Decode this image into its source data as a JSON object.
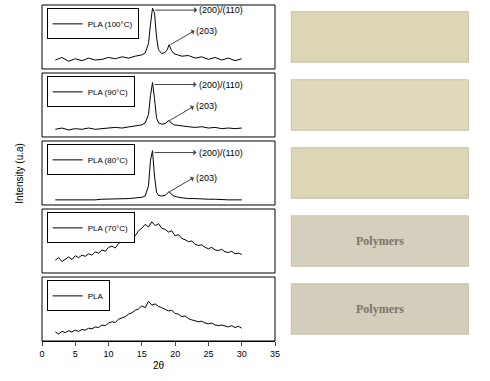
{
  "chart_data": {
    "type": "line",
    "xlabel": "2θ",
    "ylabel": "Intensity (u.a)",
    "xlim": [
      0,
      35
    ],
    "xticks": [
      0,
      5,
      10,
      15,
      20,
      25,
      30,
      35
    ],
    "tick_labels": "x",
    "sample_labels": [
      null,
      null,
      null,
      "Polymers",
      "Polymers"
    ],
    "panels": [
      {
        "ylim": [
          0,
          100
        ],
        "legend": "upper left",
        "series": [
          {
            "name": "PLA (100°C)",
            "color": "#000000",
            "x": [
              2,
              3,
              4,
              5,
              6,
              7,
              8,
              9,
              10,
              11,
              12,
              13,
              14,
              15,
              15.5,
              16,
              16.3,
              16.6,
              16.9,
              17.2,
              17.5,
              18,
              18.5,
              18.8,
              19.1,
              19.4,
              19.8,
              20.5,
              21,
              22,
              23,
              24,
              25,
              26,
              27,
              28,
              29,
              30
            ],
            "values": [
              14,
              18,
              12,
              16,
              13,
              17,
              14,
              15,
              18,
              16,
              19,
              17,
              20,
              22,
              25,
              40,
              70,
              95,
              88,
              50,
              30,
              24,
              26,
              30,
              38,
              30,
              24,
              22,
              20,
              21,
              17,
              19,
              15,
              18,
              14,
              17,
              13,
              16
            ]
          }
        ],
        "annotations": [
          {
            "text": "(200)/(110)",
            "x": 17.0,
            "y": 92
          },
          {
            "text": "(203)",
            "x": 19.3,
            "y": 38
          }
        ]
      },
      {
        "ylim": [
          0,
          100
        ],
        "legend": "upper left",
        "series": [
          {
            "name": "PLA (90°C)",
            "color": "#000000",
            "x": [
              2,
              3,
              4,
              5,
              6,
              7,
              8,
              9,
              10,
              11,
              12,
              13,
              14,
              15,
              15.5,
              16,
              16.3,
              16.6,
              16.9,
              17.2,
              17.5,
              18,
              18.5,
              18.8,
              19.1,
              19.4,
              19.8,
              20.5,
              21,
              22,
              23,
              24,
              25,
              26,
              27,
              28,
              29,
              30
            ],
            "values": [
              12,
              14,
              11,
              13,
              12,
              14,
              12,
              13,
              14,
              15,
              14,
              16,
              17,
              19,
              22,
              35,
              65,
              85,
              60,
              30,
              22,
              20,
              21,
              24,
              26,
              22,
              19,
              18,
              17,
              16,
              15,
              16,
              14,
              15,
              13,
              14,
              13,
              14
            ]
          }
        ],
        "annotations": [
          {
            "text": "(200)/(110)",
            "x": 16.9,
            "y": 82
          },
          {
            "text": "(203)",
            "x": 19.2,
            "y": 26
          }
        ]
      },
      {
        "ylim": [
          0,
          100
        ],
        "legend": "upper left",
        "series": [
          {
            "name": "PLA (80°C)",
            "color": "#000000",
            "x": [
              2,
              3,
              4,
              5,
              6,
              7,
              8,
              9,
              10,
              11,
              12,
              13,
              14,
              15,
              15.5,
              16,
              16.3,
              16.6,
              16.9,
              17.2,
              17.5,
              18,
              18.5,
              18.8,
              19.1,
              19.4,
              19.8,
              20.5,
              21,
              22,
              23,
              24,
              25,
              26,
              27,
              28,
              29,
              30
            ],
            "values": [
              8,
              8,
              7,
              8,
              8,
              8,
              8,
              9,
              9,
              9,
              10,
              10,
              11,
              12,
              14,
              30,
              70,
              85,
              45,
              20,
              15,
              14,
              15,
              18,
              21,
              17,
              14,
              12,
              11,
              10,
              10,
              9,
              9,
              9,
              8,
              8,
              8,
              8
            ]
          }
        ],
        "annotations": [
          {
            "text": "(200)/(110)",
            "x": 16.9,
            "y": 82
          },
          {
            "text": "(203)",
            "x": 19.2,
            "y": 21
          }
        ]
      },
      {
        "ylim": [
          0,
          100
        ],
        "legend": "upper left",
        "series": [
          {
            "name": "PLA (70°C)",
            "color": "#000000",
            "x": [
              2,
              2.5,
              3,
              3.5,
              4,
              4.5,
              5,
              5.5,
              6,
              6.5,
              7,
              7.5,
              8,
              8.5,
              9,
              9.5,
              10,
              10.5,
              11,
              11.5,
              12,
              12.5,
              13,
              13.5,
              14,
              14.5,
              15,
              15.5,
              16,
              16.5,
              17,
              17.5,
              18,
              18.5,
              19,
              19.5,
              20,
              20.5,
              21,
              21.5,
              22,
              22.5,
              23,
              23.5,
              24,
              24.5,
              25,
              25.5,
              26,
              26.5,
              27,
              27.5,
              28,
              28.5,
              29,
              29.5,
              30
            ],
            "values": [
              20,
              24,
              18,
              22,
              25,
              21,
              27,
              24,
              28,
              26,
              30,
              28,
              33,
              31,
              36,
              34,
              40,
              42,
              39,
              46,
              50,
              48,
              56,
              60,
              58,
              66,
              70,
              76,
              72,
              80,
              74,
              77,
              70,
              68,
              64,
              66,
              58,
              60,
              54,
              52,
              49,
              50,
              45,
              43,
              44,
              40,
              38,
              40,
              36,
              35,
              37,
              33,
              32,
              34,
              30,
              31,
              29
            ]
          }
        ],
        "annotations": []
      },
      {
        "ylim": [
          0,
          100
        ],
        "legend": "upper left",
        "series": [
          {
            "name": "PLA",
            "color": "#000000",
            "x": [
              2,
              2.5,
              3,
              3.5,
              4,
              4.5,
              5,
              5.5,
              6,
              6.5,
              7,
              7.5,
              8,
              8.5,
              9,
              9.5,
              10,
              10.5,
              11,
              11.5,
              12,
              12.5,
              13,
              13.5,
              14,
              14.5,
              15,
              15.5,
              16,
              16.5,
              17,
              17.5,
              18,
              18.5,
              19,
              19.5,
              20,
              20.5,
              21,
              21.5,
              22,
              22.5,
              23,
              23.5,
              24,
              24.5,
              25,
              25.5,
              26,
              26.5,
              27,
              27.5,
              28,
              28.5,
              29,
              29.5,
              30
            ],
            "values": [
              14,
              11,
              15,
              13,
              16,
              14,
              17,
              15,
              18,
              17,
              20,
              19,
              22,
              21,
              25,
              24,
              28,
              30,
              29,
              34,
              36,
              38,
              42,
              44,
              48,
              50,
              55,
              52,
              62,
              56,
              58,
              54,
              52,
              50,
              47,
              48,
              43,
              42,
              38,
              39,
              35,
              33,
              32,
              30,
              31,
              28,
              27,
              28,
              25,
              24,
              25,
              23,
              22,
              24,
              21,
              23,
              20
            ]
          }
        ],
        "annotations": []
      }
    ]
  }
}
